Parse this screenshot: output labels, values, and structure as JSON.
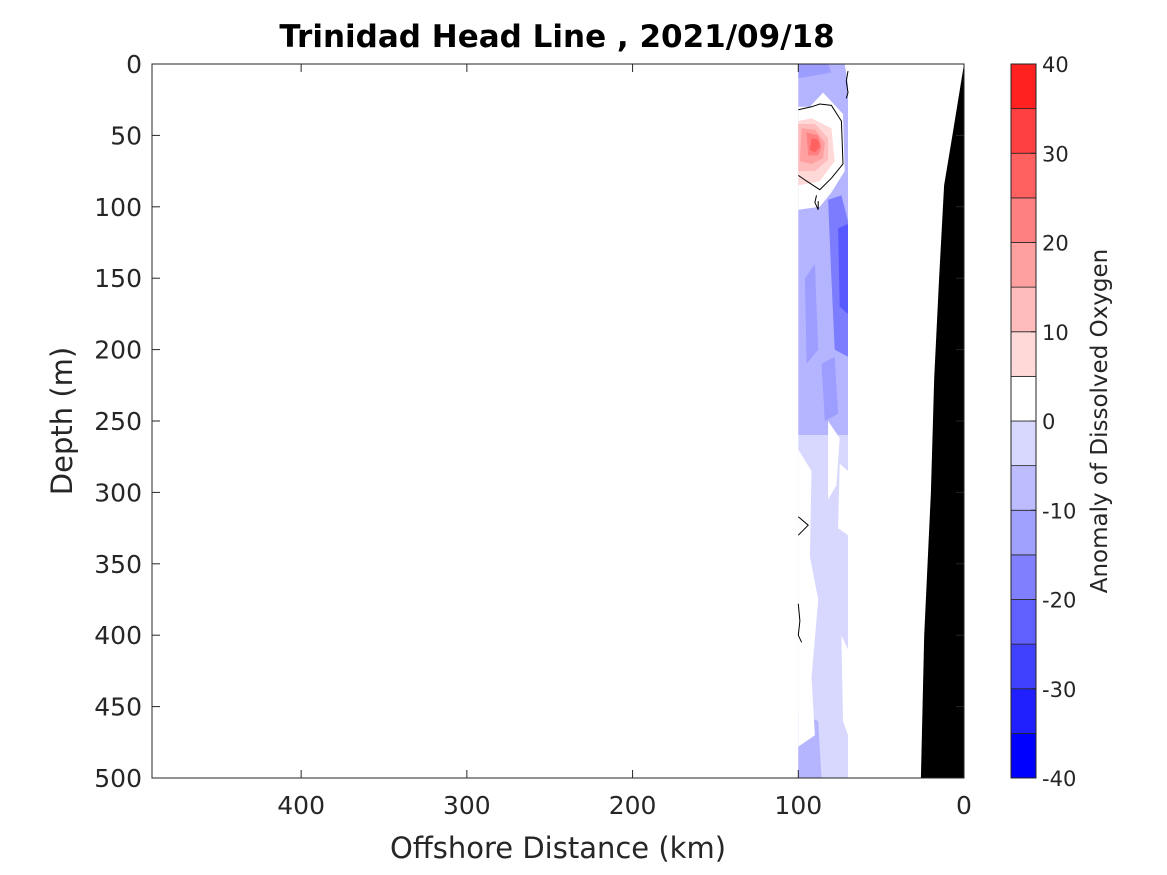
{
  "chart_data": {
    "type": "contour",
    "title": "Trinidad Head Line , 2021/09/18",
    "xlabel": "Offshore Distance (km)",
    "ylabel": "Depth (m)",
    "xlim": [
      490,
      0
    ],
    "ylim": [
      0,
      500
    ],
    "x_reversed": true,
    "y_reversed": true,
    "xticks": [
      400,
      300,
      200,
      100,
      0
    ],
    "yticks": [
      0,
      50,
      100,
      150,
      200,
      250,
      300,
      350,
      400,
      450,
      500
    ],
    "colorbar": {
      "label": "Anomaly of Dissolved Oxygen",
      "range": [
        -40,
        40
      ],
      "ticks": [
        40,
        30,
        20,
        10,
        0,
        -10,
        -20,
        -30,
        -40
      ],
      "levels": [
        -40,
        -35,
        -30,
        -25,
        -20,
        -15,
        -10,
        -5,
        0,
        5,
        10,
        15,
        20,
        25,
        30,
        35,
        40
      ],
      "colors": [
        "#0000ff",
        "#2020ff",
        "#4040ff",
        "#6060ff",
        "#8080ff",
        "#a0a0ff",
        "#bcbcff",
        "#d8d8ff",
        "#ffffff",
        "#ffffff",
        "#ffd8d8",
        "#ffbcbc",
        "#ffa0a0",
        "#ff8080",
        "#ff6060",
        "#ff4040",
        "#ff2020",
        "#ff0000"
      ]
    },
    "regions": [
      {
        "value": -12,
        "color": "#b5b5ff",
        "polygon": [
          [
            100,
            0
          ],
          [
            70,
            0
          ],
          [
            70,
            260
          ],
          [
            100,
            260
          ]
        ]
      },
      {
        "value": -17,
        "color": "#9d9dff",
        "polygon": [
          [
            100,
            0
          ],
          [
            82,
            0
          ],
          [
            80,
            6
          ],
          [
            100,
            10
          ]
        ]
      },
      {
        "value": -7,
        "color": "#d8d8ff",
        "polygon": [
          [
            100,
            260
          ],
          [
            70,
            260
          ],
          [
            70,
            500
          ],
          [
            100,
            500
          ]
        ]
      },
      {
        "value": -12,
        "color": "#b5b5ff",
        "polygon": [
          [
            100,
            455
          ],
          [
            88,
            460
          ],
          [
            86,
            500
          ],
          [
            100,
            500
          ]
        ]
      },
      {
        "value": -22,
        "color": "#7c7cff",
        "polygon": [
          [
            82,
            95
          ],
          [
            74,
            92
          ],
          [
            70,
            110
          ],
          [
            70,
            205
          ],
          [
            78,
            200
          ],
          [
            80,
            150
          ]
        ]
      },
      {
        "value": -28,
        "color": "#5858ff",
        "polygon": [
          [
            76,
            115
          ],
          [
            70,
            112
          ],
          [
            70,
            175
          ],
          [
            75,
            170
          ]
        ]
      },
      {
        "value": -17,
        "color": "#9d9dff",
        "polygon": [
          [
            96,
            150
          ],
          [
            90,
            140
          ],
          [
            88,
            200
          ],
          [
            95,
            210
          ]
        ]
      },
      {
        "value": -17,
        "color": "#9d9dff",
        "polygon": [
          [
            86,
            210
          ],
          [
            78,
            205
          ],
          [
            76,
            245
          ],
          [
            84,
            250
          ]
        ]
      },
      {
        "value": 0,
        "color": "#ffffff",
        "polygon": [
          [
            100,
            30
          ],
          [
            93,
            30
          ],
          [
            85,
            20
          ],
          [
            73,
            35
          ],
          [
            72,
            75
          ],
          [
            80,
            90
          ],
          [
            87,
            100
          ],
          [
            100,
            102
          ]
        ]
      },
      {
        "value": 0,
        "color": "#ffffff",
        "polygon": [
          [
            72,
            0
          ],
          [
            65,
            0
          ],
          [
            64,
            30
          ],
          [
            69,
            22
          ]
        ]
      },
      {
        "value": 0,
        "color": "#ffffff",
        "polygon": [
          [
            82,
            250
          ],
          [
            75,
            262
          ],
          [
            77,
            295
          ],
          [
            82,
            305
          ]
        ]
      },
      {
        "value": 0,
        "color": "#ffffff",
        "polygon": [
          [
            100,
            270
          ],
          [
            92,
            285
          ],
          [
            93,
            345
          ],
          [
            88,
            375
          ],
          [
            92,
            430
          ],
          [
            90,
            470
          ],
          [
            100,
            478
          ]
        ]
      },
      {
        "value": 0,
        "color": "#ffffff",
        "polygon": [
          [
            75,
            280
          ],
          [
            70,
            285
          ],
          [
            70,
            330
          ],
          [
            76,
            325
          ]
        ]
      },
      {
        "value": 0,
        "color": "#ffffff",
        "polygon": [
          [
            74,
            400
          ],
          [
            70,
            410
          ],
          [
            70,
            470
          ],
          [
            73,
            460
          ]
        ]
      },
      {
        "value": 8,
        "color": "#ffd8d8",
        "polygon": [
          [
            100,
            40
          ],
          [
            92,
            38
          ],
          [
            80,
            45
          ],
          [
            78,
            68
          ],
          [
            87,
            82
          ],
          [
            100,
            85
          ]
        ]
      },
      {
        "value": 13,
        "color": "#ffbcbc",
        "polygon": [
          [
            100,
            42
          ],
          [
            90,
            42
          ],
          [
            82,
            52
          ],
          [
            82,
            67
          ],
          [
            90,
            75
          ],
          [
            100,
            75
          ]
        ]
      },
      {
        "value": 18,
        "color": "#ffa0a0",
        "polygon": [
          [
            98,
            45
          ],
          [
            90,
            46
          ],
          [
            84,
            55
          ],
          [
            85,
            66
          ],
          [
            92,
            70
          ],
          [
            99,
            68
          ]
        ]
      },
      {
        "value": 23,
        "color": "#ff8080",
        "polygon": [
          [
            95,
            48
          ],
          [
            88,
            50
          ],
          [
            86,
            58
          ],
          [
            88,
            64
          ],
          [
            94,
            64
          ]
        ]
      },
      {
        "value": 28,
        "color": "#ff6060",
        "polygon": [
          [
            92,
            52
          ],
          [
            88,
            53
          ],
          [
            87,
            58
          ],
          [
            90,
            62
          ],
          [
            93,
            60
          ]
        ]
      }
    ],
    "zero_contours": [
      [
        [
          100,
          32
        ],
        [
          92,
          30
        ],
        [
          87,
          28
        ],
        [
          80,
          29
        ],
        [
          74,
          40
        ],
        [
          73,
          70
        ],
        [
          80,
          80
        ],
        [
          87,
          88
        ],
        [
          95,
          82
        ],
        [
          100,
          78
        ]
      ],
      [
        [
          70,
          5
        ],
        [
          71,
          12
        ],
        [
          70,
          20
        ],
        [
          71,
          24
        ]
      ],
      [
        [
          89,
          92
        ],
        [
          90,
          97
        ],
        [
          88,
          102
        ],
        [
          88,
          96
        ]
      ],
      [
        [
          100,
          317
        ],
        [
          94,
          323
        ],
        [
          100,
          330
        ]
      ],
      [
        [
          100,
          378
        ],
        [
          99,
          390
        ],
        [
          100,
          400
        ],
        [
          98,
          405
        ]
      ]
    ],
    "bathymetry": {
      "color": "#000000",
      "profile": [
        [
          0,
          0
        ],
        [
          7,
          50
        ],
        [
          12,
          85
        ],
        [
          15,
          150
        ],
        [
          18,
          220
        ],
        [
          20,
          300
        ],
        [
          24,
          400
        ],
        [
          26,
          500
        ]
      ]
    }
  }
}
